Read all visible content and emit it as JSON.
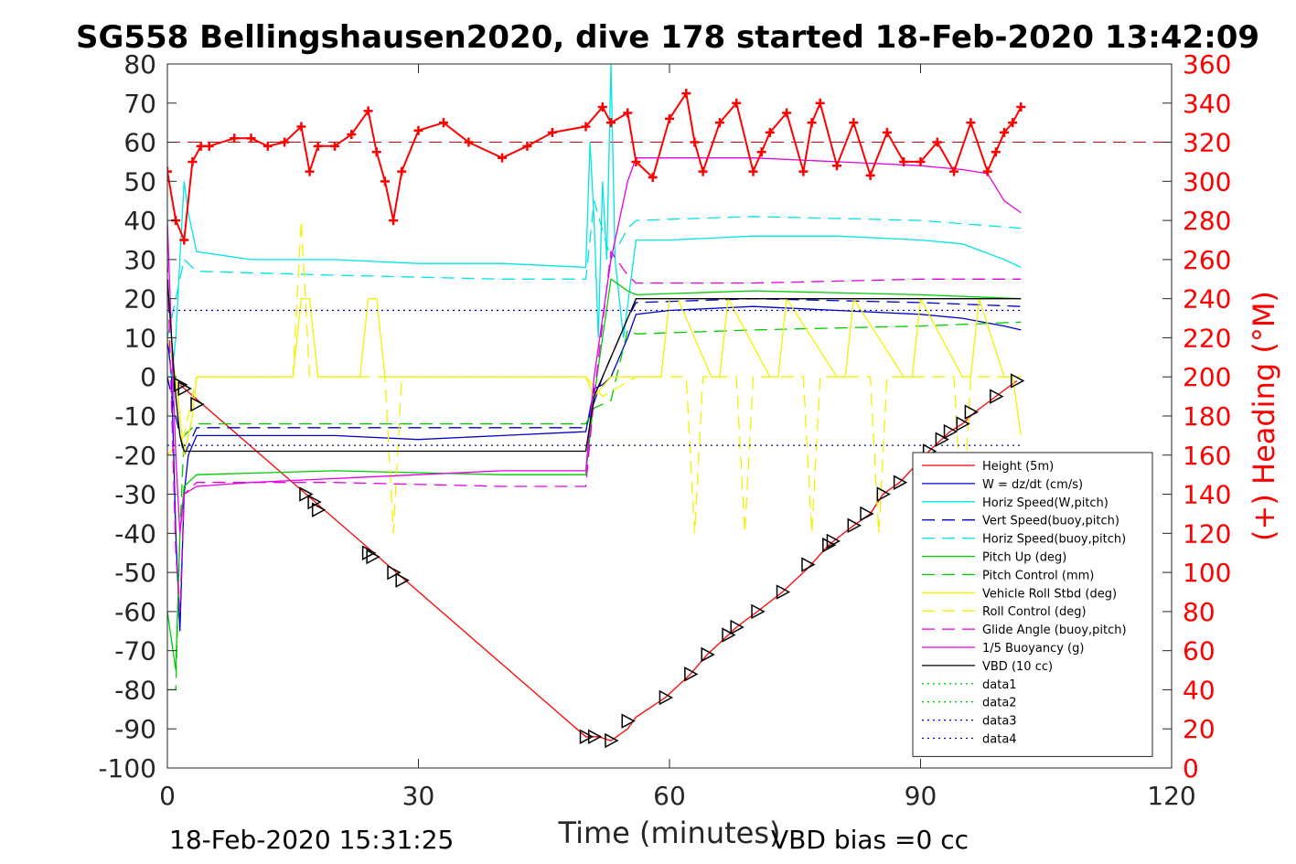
{
  "chart_data": {
    "type": "line",
    "title": "SG558 Bellingshausen2020, dive 178 started 18-Feb-2020 13:42:09",
    "xlabel": "Time (minutes)",
    "ylabel_right": "(+) Heading (°M)",
    "xlim": [
      0,
      120
    ],
    "ylim_left": [
      -100,
      80
    ],
    "ylim_right": [
      0,
      360
    ],
    "x_ticks": [
      "0",
      "30",
      "60",
      "90",
      "120"
    ],
    "y_ticks_left": [
      "80",
      "70",
      "60",
      "50",
      "40",
      "30",
      "20",
      "10",
      "0",
      "-10",
      "-20",
      "-30",
      "-40",
      "-50",
      "-60",
      "-70",
      "-80",
      "-90",
      "-100"
    ],
    "y_ticks_right": [
      "360",
      "340",
      "320",
      "300",
      "280",
      "260",
      "240",
      "220",
      "200",
      "180",
      "160",
      "140",
      "120",
      "100",
      "80",
      "60",
      "40",
      "20",
      "0"
    ],
    "grid": false,
    "legend_position": "lower-right",
    "footer_left": "18-Feb-2020 15:31:25",
    "footer_right": "VBD bias =0 cc",
    "colors": {
      "red": "#ff0000",
      "blue": "#0000cc",
      "cyan": "#00e5e5",
      "green": "#00cc00",
      "yellow": "#f2f200",
      "magenta": "#e600e6",
      "black": "#000000",
      "axis_right": "#ff0000"
    },
    "series": [
      {
        "name": "Height (5m)",
        "color": "#ff0000",
        "dash": "solid",
        "x": [
          1.5,
          50,
          51.5,
          53,
          55,
          56,
          59.5,
          62.5,
          64.5,
          67,
          68,
          70.5,
          73.5,
          76.5,
          79,
          82,
          84,
          85.5,
          87.5,
          91,
          92.5,
          93.5,
          95,
          96.5,
          99,
          101.5
        ],
        "y": [
          -2,
          -92,
          -92,
          -93,
          -90,
          -87,
          -82,
          -76,
          -71,
          -66,
          -64,
          -60,
          -55,
          -49,
          -43,
          -38,
          -35,
          -30,
          -27,
          -19,
          -16,
          -14,
          -12,
          -9,
          -5,
          -1
        ]
      },
      {
        "name": "W = dz/dt (cm/s)",
        "color": "#0000cc",
        "dash": "solid",
        "x": [
          0,
          0.5,
          1,
          1.5,
          2,
          2.5,
          3.5,
          10,
          20,
          30,
          40,
          50,
          51,
          52,
          53,
          55,
          56,
          60,
          70,
          80,
          90,
          95,
          100,
          102
        ],
        "y": [
          10,
          0,
          -40,
          -65,
          -30,
          -20,
          -15,
          -15,
          -15,
          -16,
          -15,
          -14,
          -3,
          -2,
          0,
          10,
          16,
          17,
          18,
          17,
          16,
          15,
          13,
          12
        ]
      },
      {
        "name": "Horiz Speed(W,pitch)",
        "color": "#00e5e5",
        "dash": "solid",
        "x": [
          0,
          0.5,
          1,
          1.5,
          2,
          2.5,
          3.5,
          10,
          20,
          30,
          40,
          50,
          50.5,
          51,
          51.5,
          52,
          52.5,
          53,
          53.5,
          54.5,
          56,
          60,
          70,
          80,
          90,
          95,
          100,
          102
        ],
        "y": [
          0,
          0,
          10,
          30,
          50,
          42,
          32,
          30,
          30,
          29,
          29,
          28,
          60,
          40,
          10,
          50,
          30,
          80,
          30,
          10,
          35,
          35,
          36,
          36,
          35,
          34,
          30,
          28
        ]
      },
      {
        "name": "Vert Speed(buoy,pitch)",
        "color": "#0000cc",
        "dash": "dashed",
        "x": [
          0,
          2,
          3.5,
          20,
          40,
          50,
          52,
          55,
          56,
          70,
          90,
          102
        ],
        "y": [
          0,
          -20,
          -13,
          -13,
          -13,
          -13,
          0,
          15,
          19,
          20,
          19,
          18
        ]
      },
      {
        "name": "Horiz Speed(buoy,pitch)",
        "color": "#00e5e5",
        "dash": "dashed",
        "x": [
          0,
          2,
          3.5,
          20,
          40,
          50,
          51,
          53,
          55,
          56,
          70,
          90,
          102
        ],
        "y": [
          10,
          30,
          27,
          26,
          25,
          25,
          45,
          30,
          38,
          40,
          41,
          40,
          38
        ]
      },
      {
        "name": "Pitch Up (deg)",
        "color": "#00cc00",
        "dash": "solid",
        "x": [
          0,
          1,
          1.5,
          2,
          3.5,
          20,
          40,
          50,
          51,
          53,
          55,
          56,
          70,
          90,
          102
        ],
        "y": [
          -60,
          -75,
          -40,
          -28,
          -25,
          -24,
          -25,
          -25,
          -5,
          25,
          22,
          21,
          22,
          21,
          20
        ]
      },
      {
        "name": "Pitch Control (mm)",
        "color": "#00cc00",
        "dash": "dashed",
        "x": [
          0,
          1,
          1.5,
          2,
          3.5,
          20,
          40,
          50,
          51,
          53,
          55,
          56,
          70,
          90,
          102
        ],
        "y": [
          -80,
          -80,
          -40,
          -15,
          -12,
          -12,
          -12,
          -12,
          -8,
          -6,
          12,
          11,
          12,
          13,
          14
        ]
      },
      {
        "name": "Vehicle Roll Stbd (deg)",
        "color": "#f2f200",
        "dash": "solid",
        "x": [
          0,
          1,
          2,
          3,
          3.5,
          15,
          16,
          17,
          18,
          23,
          24,
          25,
          26,
          30,
          40,
          50,
          51,
          53,
          55,
          59,
          60,
          61,
          65,
          66,
          67,
          72,
          73,
          74,
          80,
          81,
          82,
          88,
          89,
          90,
          95,
          96,
          97,
          100,
          101,
          102
        ],
        "y": [
          10,
          0,
          -20,
          -10,
          0,
          0,
          20,
          20,
          0,
          0,
          20,
          20,
          0,
          0,
          0,
          0,
          -5,
          0,
          0,
          0,
          20,
          20,
          0,
          0,
          20,
          0,
          0,
          20,
          0,
          0,
          20,
          0,
          0,
          20,
          0,
          0,
          20,
          0,
          0,
          -15
        ]
      },
      {
        "name": "Roll Control (deg)",
        "color": "#f2f200",
        "dash": "dashed",
        "x": [
          0,
          2,
          3.5,
          15,
          16,
          17,
          18,
          26,
          27,
          28,
          30,
          40,
          50,
          52,
          56,
          60,
          62,
          63,
          64,
          66,
          68,
          69,
          70,
          76,
          77,
          78,
          84,
          85,
          86,
          94,
          95,
          96,
          102
        ],
        "y": [
          -20,
          -15,
          0,
          0,
          40,
          0,
          0,
          0,
          -40,
          0,
          0,
          0,
          0,
          -5,
          0,
          0,
          0,
          -40,
          0,
          0,
          0,
          -40,
          0,
          0,
          -40,
          0,
          0,
          -40,
          0,
          0,
          -40,
          0,
          0
        ]
      },
      {
        "name": "Glide Angle (buoy,pitch)",
        "color": "#e600e6",
        "dash": "dashed",
        "x": [
          0,
          1,
          1.5,
          2,
          3.5,
          20,
          40,
          50,
          51,
          53,
          55,
          56,
          70,
          90,
          102
        ],
        "y": [
          30,
          -45,
          -60,
          -30,
          -27,
          -27,
          -28,
          -28,
          -5,
          32,
          26,
          24,
          24,
          25,
          25
        ]
      },
      {
        "name": "1/5 Buoyancy (g)",
        "color": "#e600e6",
        "dash": "solid",
        "x": [
          0,
          1,
          1.5,
          2,
          3.5,
          10,
          20,
          30,
          40,
          50,
          51,
          53,
          55,
          56,
          60,
          70,
          80,
          90,
          95,
          98,
          100,
          102
        ],
        "y": [
          40,
          -20,
          -40,
          -30,
          -28,
          -27,
          -26,
          -25,
          -24,
          -24,
          0,
          30,
          50,
          56,
          56,
          56,
          55,
          54,
          53,
          52,
          45,
          42
        ]
      },
      {
        "name": "VBD (10 cc)",
        "color": "#000000",
        "dash": "solid",
        "x": [
          0,
          1,
          1.5,
          2,
          50,
          51,
          53,
          55,
          56,
          102
        ],
        "y": [
          25,
          -5,
          -15,
          -19,
          -19,
          -5,
          5,
          15,
          20,
          20
        ]
      },
      {
        "name": "data1",
        "color": "#00cc00",
        "dash": "dotted",
        "x": [],
        "y": []
      },
      {
        "name": "data2",
        "color": "#00cc00",
        "dash": "dotted",
        "x": [],
        "y": []
      },
      {
        "name": "data3",
        "color": "#0000cc",
        "dash": "dotted",
        "x": [
          0,
          102
        ],
        "y": [
          17,
          17
        ]
      },
      {
        "name": "data4",
        "color": "#0000cc",
        "dash": "dotted",
        "x": [
          0,
          102
        ],
        "y": [
          -17.5,
          -17.5
        ]
      }
    ],
    "heading": {
      "color": "#ff0000",
      "axis": "right",
      "x": [
        0,
        1,
        2,
        3,
        4,
        5,
        8,
        10,
        12,
        14,
        16,
        17,
        18,
        20,
        22,
        24,
        25,
        26,
        27,
        28,
        30,
        33,
        36,
        40,
        43,
        46,
        50,
        52,
        53,
        55,
        56,
        58,
        60,
        62,
        63,
        64,
        66,
        68,
        70,
        71,
        72,
        74,
        76,
        77,
        78,
        80,
        82,
        84,
        86,
        88,
        90,
        92,
        94,
        96,
        98,
        99,
        100,
        101,
        102
      ],
      "y": [
        305,
        280,
        270,
        310,
        318,
        318,
        322,
        322,
        318,
        320,
        328,
        305,
        318,
        318,
        324,
        336,
        315,
        300,
        280,
        305,
        326,
        330,
        320,
        312,
        318,
        325,
        328,
        338,
        330,
        335,
        310,
        302,
        332,
        345,
        320,
        305,
        330,
        340,
        305,
        315,
        325,
        335,
        305,
        330,
        340,
        308,
        330,
        303,
        325,
        310,
        310,
        320,
        305,
        330,
        305,
        315,
        325,
        330,
        338
      ]
    },
    "heading_reference": {
      "color": "#cc0000",
      "dash": "dashed",
      "y": 320
    },
    "markers": {
      "symbol": "triangle-right",
      "color": "#000000",
      "x": [
        1.5,
        2,
        3.5,
        16.5,
        17.5,
        18,
        24,
        24.5,
        27,
        28,
        50,
        51,
        53,
        55,
        59.5,
        62.5,
        64.5,
        67,
        68,
        70.5,
        73.5,
        76.5,
        79,
        79.5,
        82,
        83.5,
        85.5,
        87.5,
        91,
        92.5,
        93.5,
        95,
        96,
        99,
        101.5
      ],
      "y": [
        -2,
        -3,
        -7,
        -30,
        -32,
        -34,
        -45,
        -46,
        -50,
        -52,
        -92,
        -92,
        -93,
        -88,
        -82,
        -76,
        -71,
        -66,
        -64,
        -60,
        -55,
        -48,
        -43,
        -42,
        -38,
        -35,
        -30,
        -27,
        -19,
        -16,
        -14,
        -12,
        -9,
        -5,
        -1
      ]
    }
  }
}
